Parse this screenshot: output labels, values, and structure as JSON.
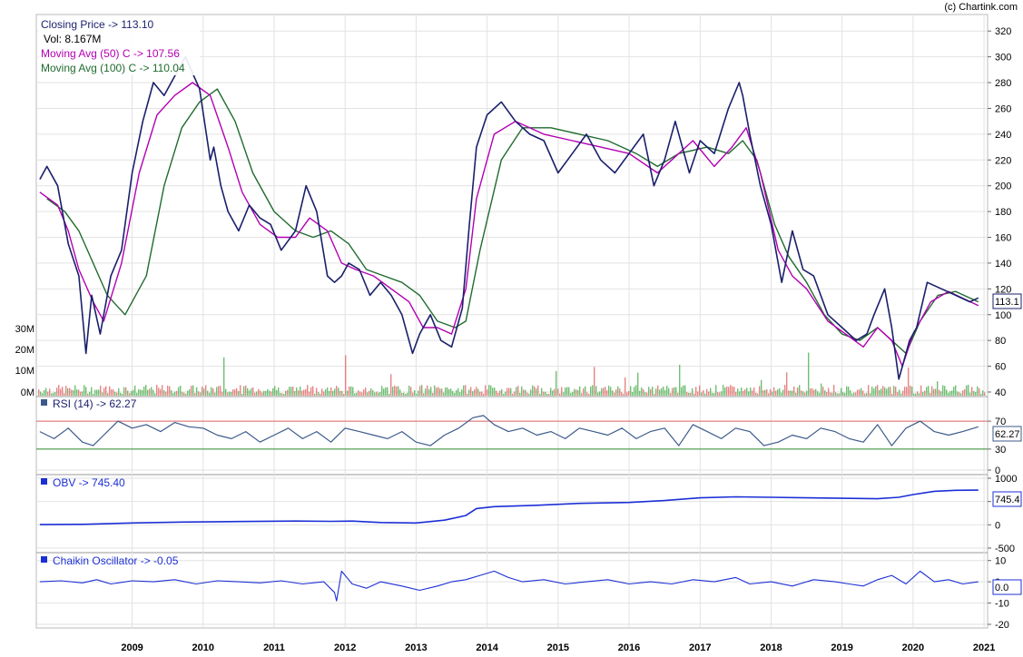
{
  "copyright": "(c) Chartink.com",
  "colors": {
    "price": "#1a1f6b",
    "ma50": "#b300b3",
    "ma100": "#1f6b2e",
    "vol_up": "#4caf50",
    "vol_down": "#e06666",
    "rsi": "#3b5a8a",
    "rsi_upper": "#e06666",
    "rsi_lower": "#2e8b2e",
    "obv": "#1c2fd6",
    "chaikin": "#1c2fd6",
    "grid": "#e2e2e2"
  },
  "price_panel": {
    "legend": {
      "close": "Closing Price -> 113.10",
      "vol": "Vol: 8.167M",
      "ma50": "Moving Avg (50) C -> 107.56",
      "ma100": "Moving Avg (100) C -> 110.04"
    },
    "last_value_badge": "113.1"
  },
  "rsi_panel": {
    "legend": "RSI (14) -> 62.27",
    "last_value_badge": "62.27"
  },
  "obv_panel": {
    "legend": "OBV -> 745.40",
    "last_value_badge": "745.4"
  },
  "chaikin_panel": {
    "legend": "Chaikin Oscillator -> -0.05",
    "last_value_badge": "0.0"
  },
  "chart_data": [
    {
      "type": "line",
      "panel": "price",
      "x_ticks": [
        "2009",
        "2010",
        "2011",
        "2012",
        "2013",
        "2014",
        "2015",
        "2016",
        "2017",
        "2018",
        "2019",
        "2020",
        "2021"
      ],
      "y_ticks": [
        40,
        60,
        80,
        100,
        120,
        140,
        160,
        180,
        200,
        220,
        240,
        260,
        280,
        300,
        320
      ],
      "ylim": [
        40,
        330
      ],
      "volume_ticks": [
        "0M",
        "10M",
        "20M",
        "30M"
      ],
      "series": [
        {
          "name": "Closing Price",
          "x": [
            2008.2,
            2008.3,
            2008.45,
            2008.6,
            2008.75,
            2008.85,
            2008.93,
            2009.05,
            2009.2,
            2009.35,
            2009.5,
            2009.65,
            2009.8,
            2009.95,
            2010.1,
            2010.25,
            2010.45,
            2010.6,
            2010.65,
            2010.75,
            2010.85,
            2011.0,
            2011.15,
            2011.3,
            2011.45,
            2011.6,
            2011.8,
            2011.95,
            2012.1,
            2012.25,
            2012.35,
            2012.45,
            2012.55,
            2012.7,
            2012.85,
            2013.0,
            2013.15,
            2013.3,
            2013.45,
            2013.55,
            2013.7,
            2013.85,
            2014.0,
            2014.15,
            2014.25,
            2014.35,
            2014.5,
            2014.7,
            2014.9,
            2015.1,
            2015.3,
            2015.5,
            2015.7,
            2015.9,
            2016.1,
            2016.3,
            2016.5,
            2016.7,
            2016.85,
            2017.0,
            2017.15,
            2017.35,
            2017.5,
            2017.7,
            2017.9,
            2018.05,
            2018.1,
            2018.2,
            2018.35,
            2018.5,
            2018.65,
            2018.8,
            2018.95,
            2019.1,
            2019.3,
            2019.5,
            2019.7,
            2019.85,
            2019.95,
            2020.1,
            2020.2,
            2020.3,
            2020.45,
            2020.55,
            2020.7,
            2020.9,
            2021.1,
            2021.3,
            2021.42
          ],
          "y": [
            205,
            215,
            200,
            155,
            130,
            70,
            115,
            85,
            130,
            150,
            210,
            250,
            280,
            270,
            285,
            300,
            275,
            220,
            230,
            200,
            180,
            165,
            185,
            175,
            170,
            150,
            165,
            200,
            180,
            130,
            125,
            130,
            140,
            135,
            115,
            125,
            115,
            100,
            70,
            85,
            100,
            80,
            75,
            105,
            170,
            230,
            255,
            265,
            250,
            240,
            235,
            210,
            225,
            240,
            220,
            210,
            225,
            240,
            200,
            220,
            250,
            210,
            235,
            225,
            260,
            280,
            270,
            240,
            200,
            170,
            125,
            165,
            135,
            130,
            100,
            90,
            80,
            85,
            100,
            120,
            90,
            50,
            80,
            90,
            125,
            120,
            115,
            110,
            113
          ]
        },
        {
          "name": "Moving Avg (50) C",
          "x": [
            2008.2,
            2008.45,
            2008.6,
            2008.75,
            2008.95,
            2009.1,
            2009.35,
            2009.6,
            2009.85,
            2010.1,
            2010.35,
            2010.6,
            2010.85,
            2011.05,
            2011.3,
            2011.55,
            2011.8,
            2012.0,
            2012.25,
            2012.45,
            2012.65,
            2012.9,
            2013.15,
            2013.4,
            2013.6,
            2013.8,
            2014.0,
            2014.2,
            2014.35,
            2014.6,
            2014.9,
            2015.3,
            2015.7,
            2016.1,
            2016.5,
            2016.9,
            2017.1,
            2017.4,
            2017.7,
            2017.95,
            2018.15,
            2018.35,
            2018.6,
            2018.8,
            2019.0,
            2019.3,
            2019.55,
            2019.8,
            2020.0,
            2020.2,
            2020.35,
            2020.5,
            2020.75,
            2021.0,
            2021.42
          ],
          "y": [
            195,
            185,
            165,
            135,
            110,
            95,
            140,
            210,
            255,
            270,
            280,
            270,
            230,
            195,
            170,
            160,
            160,
            175,
            165,
            140,
            135,
            130,
            120,
            110,
            90,
            90,
            85,
            120,
            190,
            240,
            250,
            240,
            235,
            230,
            225,
            210,
            220,
            235,
            215,
            230,
            245,
            210,
            150,
            130,
            120,
            95,
            85,
            75,
            90,
            80,
            60,
            85,
            110,
            118,
            107
          ]
        },
        {
          "name": "Moving Avg (100) C",
          "x": [
            2008.3,
            2008.55,
            2008.75,
            2008.95,
            2009.15,
            2009.4,
            2009.7,
            2009.95,
            2010.2,
            2010.45,
            2010.7,
            2010.95,
            2011.2,
            2011.5,
            2011.8,
            2012.05,
            2012.3,
            2012.55,
            2012.8,
            2013.05,
            2013.3,
            2013.55,
            2013.8,
            2014.05,
            2014.2,
            2014.4,
            2014.7,
            2015.0,
            2015.4,
            2015.8,
            2016.2,
            2016.6,
            2016.9,
            2017.2,
            2017.6,
            2017.9,
            2018.1,
            2018.3,
            2018.55,
            2018.75,
            2019.0,
            2019.25,
            2019.5,
            2019.75,
            2020.0,
            2020.2,
            2020.4,
            2020.6,
            2020.85,
            2021.1,
            2021.42
          ],
          "y": [
            190,
            180,
            165,
            140,
            115,
            100,
            130,
            200,
            245,
            265,
            275,
            250,
            210,
            180,
            165,
            160,
            165,
            155,
            135,
            130,
            125,
            115,
            95,
            90,
            95,
            150,
            220,
            245,
            245,
            240,
            235,
            225,
            215,
            225,
            230,
            225,
            235,
            220,
            170,
            145,
            125,
            100,
            85,
            80,
            90,
            80,
            70,
            95,
            115,
            118,
            110
          ]
        }
      ]
    },
    {
      "type": "line",
      "panel": "rsi",
      "y_ticks": [
        0,
        30,
        70
      ],
      "ylim": [
        0,
        100
      ],
      "reference_lines": [
        70,
        30
      ],
      "series": [
        {
          "name": "RSI (14)",
          "x": [
            2008.2,
            2008.4,
            2008.6,
            2008.8,
            2008.95,
            2009.1,
            2009.3,
            2009.5,
            2009.7,
            2009.9,
            2010.1,
            2010.3,
            2010.5,
            2010.7,
            2010.9,
            2011.1,
            2011.3,
            2011.5,
            2011.7,
            2011.9,
            2012.1,
            2012.3,
            2012.5,
            2012.7,
            2012.9,
            2013.1,
            2013.3,
            2013.5,
            2013.7,
            2013.9,
            2014.1,
            2014.3,
            2014.45,
            2014.6,
            2014.8,
            2015.0,
            2015.2,
            2015.4,
            2015.6,
            2015.8,
            2016.0,
            2016.2,
            2016.4,
            2016.6,
            2016.8,
            2017.0,
            2017.2,
            2017.4,
            2017.6,
            2017.8,
            2018.0,
            2018.2,
            2018.4,
            2018.6,
            2018.8,
            2019.0,
            2019.2,
            2019.4,
            2019.6,
            2019.8,
            2020.0,
            2020.2,
            2020.4,
            2020.6,
            2020.8,
            2021.0,
            2021.2,
            2021.42
          ],
          "y": [
            55,
            45,
            60,
            40,
            35,
            50,
            70,
            60,
            65,
            55,
            68,
            62,
            60,
            50,
            45,
            55,
            40,
            50,
            60,
            45,
            55,
            40,
            60,
            55,
            50,
            45,
            55,
            40,
            35,
            50,
            60,
            75,
            78,
            65,
            55,
            60,
            50,
            55,
            45,
            60,
            55,
            50,
            60,
            45,
            55,
            60,
            35,
            65,
            55,
            45,
            60,
            55,
            35,
            40,
            50,
            45,
            60,
            55,
            45,
            40,
            65,
            35,
            60,
            70,
            55,
            50,
            55,
            62
          ]
        }
      ]
    },
    {
      "type": "line",
      "panel": "obv",
      "y_ticks": [
        -500,
        0,
        500,
        1000
      ],
      "ylim": [
        -500,
        1000
      ],
      "series": [
        {
          "name": "OBV",
          "x": [
            2008.2,
            2008.8,
            2009.5,
            2010.2,
            2011.0,
            2011.8,
            2012.3,
            2012.6,
            2013.0,
            2013.5,
            2013.9,
            2014.2,
            2014.35,
            2014.6,
            2015.2,
            2015.8,
            2016.5,
            2017.0,
            2017.5,
            2018.0,
            2018.5,
            2019.0,
            2019.5,
            2020.0,
            2020.3,
            2020.5,
            2020.8,
            2021.1,
            2021.42
          ],
          "y": [
            5,
            10,
            40,
            60,
            70,
            80,
            75,
            80,
            50,
            40,
            100,
            200,
            350,
            390,
            420,
            460,
            480,
            520,
            580,
            600,
            590,
            580,
            570,
            560,
            590,
            650,
            720,
            740,
            745
          ]
        }
      ]
    },
    {
      "type": "line",
      "panel": "chaikin",
      "y_ticks": [
        -20,
        -10,
        0,
        10
      ],
      "ylim": [
        -20,
        12
      ],
      "series": [
        {
          "name": "Chaikin Oscillator",
          "x": [
            2008.2,
            2008.5,
            2008.8,
            2009.0,
            2009.2,
            2009.5,
            2009.8,
            2010.1,
            2010.4,
            2010.7,
            2011.0,
            2011.3,
            2011.6,
            2011.9,
            2012.2,
            2012.35,
            2012.38,
            2012.45,
            2012.6,
            2012.8,
            2013.0,
            2013.3,
            2013.55,
            2013.8,
            2014.0,
            2014.2,
            2014.4,
            2014.6,
            2014.8,
            2015.0,
            2015.3,
            2015.6,
            2015.9,
            2016.2,
            2016.5,
            2016.8,
            2017.1,
            2017.4,
            2017.7,
            2018.0,
            2018.2,
            2018.5,
            2018.8,
            2019.1,
            2019.4,
            2019.6,
            2019.8,
            2020.0,
            2020.2,
            2020.4,
            2020.6,
            2020.8,
            2021.0,
            2021.2,
            2021.42
          ],
          "y": [
            0,
            0.5,
            -0.5,
            1,
            -1,
            0.5,
            0,
            1,
            -1,
            0.5,
            0,
            -0.5,
            0.5,
            -1,
            0,
            -5,
            -9,
            5,
            -1,
            -3,
            0,
            -2,
            -4,
            -2,
            0,
            1,
            3,
            5,
            2,
            0,
            1,
            -1,
            0,
            1,
            -1,
            0,
            -1,
            1,
            0,
            2,
            -1,
            0,
            -2,
            1,
            0,
            -1,
            -2,
            1,
            3,
            -1,
            5,
            0,
            1,
            -1,
            0
          ]
        }
      ]
    }
  ]
}
